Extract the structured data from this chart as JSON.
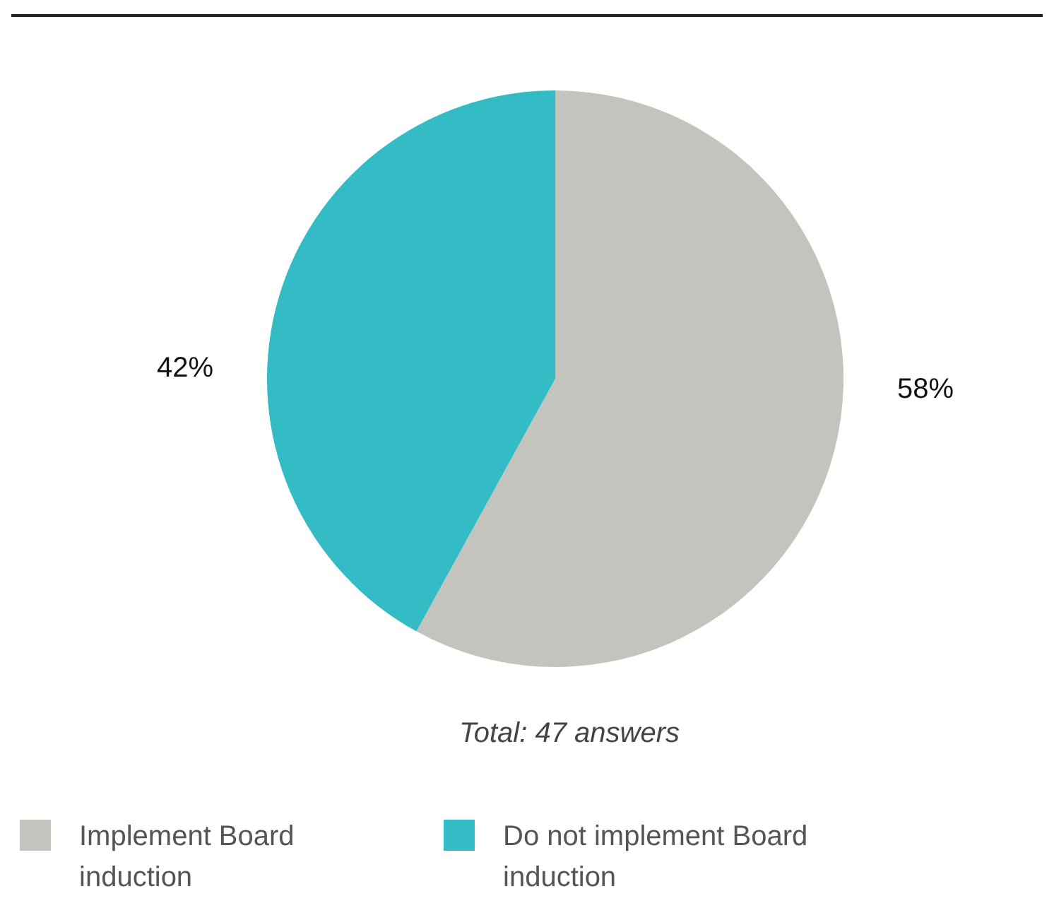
{
  "chart_data": {
    "type": "pie",
    "categories": [
      "Implement Board induction",
      "Do not implement Board induction"
    ],
    "values": [
      58,
      42
    ],
    "colors": [
      "#c4c4be",
      "#33bcc6"
    ],
    "value_labels": [
      "58%",
      "42%"
    ],
    "legend": "bottom left",
    "annotations": [
      "Total: 47 answers"
    ]
  }
}
